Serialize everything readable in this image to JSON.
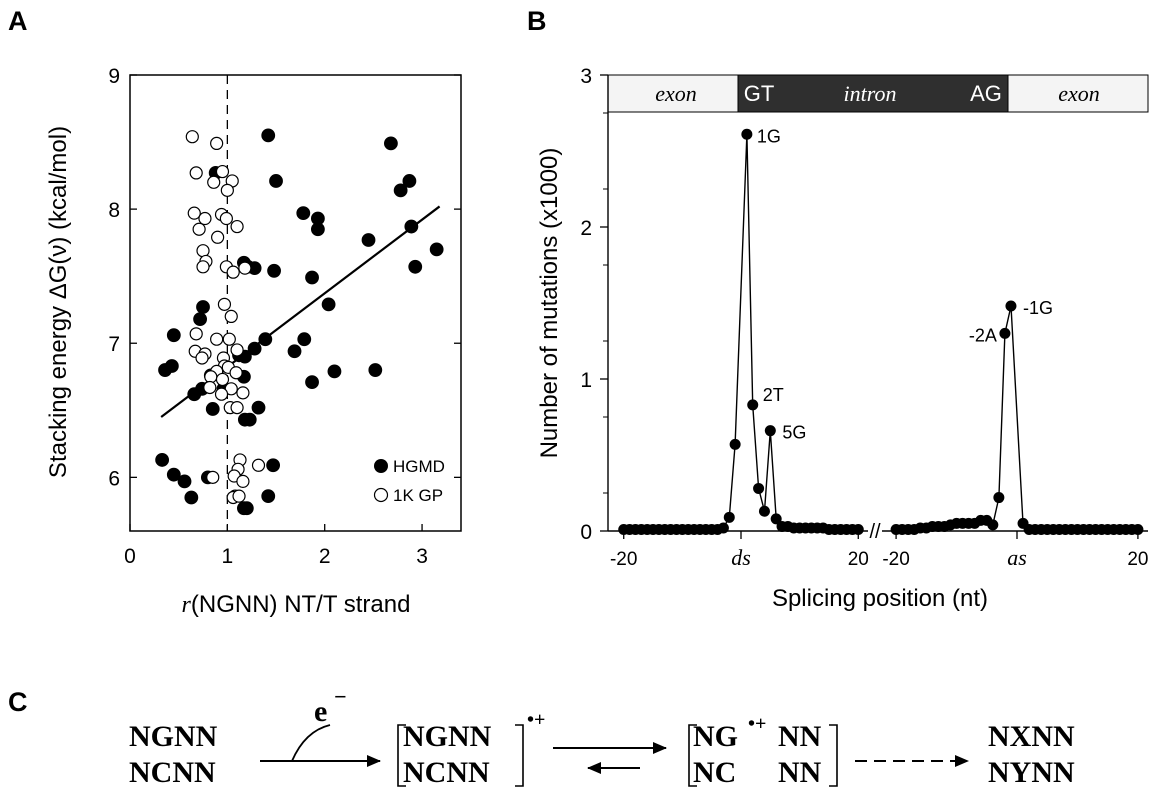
{
  "panels": {
    "a_letter": "A",
    "b_letter": "B",
    "c_letter": "C"
  },
  "chart_data": [
    {
      "type": "scatter",
      "panel": "A",
      "xlabel_italic": "r",
      "xlabel_rest": "(NGNN) NT/T strand",
      "ylabel": "Stacking energy ΔG(ν) (kcal/mol)",
      "xlim": [
        0,
        3.4
      ],
      "ylim": [
        5.6,
        9
      ],
      "xticks": [
        0,
        1,
        2,
        3
      ],
      "yticks": [
        6,
        7,
        8,
        9
      ],
      "xtick_labels": [
        "0",
        "1",
        "2",
        "3"
      ],
      "ytick_labels": [
        "6",
        "7",
        "8",
        "9"
      ],
      "reference_line_x": 1,
      "trend_line": {
        "x": [
          0.32,
          3.18
        ],
        "y": [
          6.45,
          8.02
        ]
      },
      "legend_placement": "bottom-right",
      "series": [
        {
          "name": "HGMD",
          "marker": "filled-circle",
          "points": [
            [
              0.88,
              8.27
            ],
            [
              1.42,
              8.55
            ],
            [
              2.68,
              8.49
            ],
            [
              1.5,
              8.21
            ],
            [
              2.87,
              8.21
            ],
            [
              2.78,
              8.14
            ],
            [
              1.78,
              7.97
            ],
            [
              1.93,
              7.93
            ],
            [
              1.93,
              7.85
            ],
            [
              2.89,
              7.87
            ],
            [
              2.45,
              7.77
            ],
            [
              3.15,
              7.7
            ],
            [
              1.17,
              7.6
            ],
            [
              1.21,
              7.57
            ],
            [
              1.28,
              7.56
            ],
            [
              1.48,
              7.54
            ],
            [
              2.93,
              7.57
            ],
            [
              1.87,
              7.49
            ],
            [
              2.04,
              7.29
            ],
            [
              0.75,
              7.27
            ],
            [
              0.72,
              7.18
            ],
            [
              0.45,
              7.06
            ],
            [
              1.39,
              7.03
            ],
            [
              1.79,
              7.03
            ],
            [
              1.69,
              6.94
            ],
            [
              1.28,
              6.96
            ],
            [
              1.12,
              6.91
            ],
            [
              1.18,
              6.9
            ],
            [
              0.36,
              6.8
            ],
            [
              0.43,
              6.83
            ],
            [
              2.1,
              6.79
            ],
            [
              2.52,
              6.8
            ],
            [
              0.83,
              6.76
            ],
            [
              1.17,
              6.75
            ],
            [
              0.74,
              6.66
            ],
            [
              0.96,
              6.66
            ],
            [
              0.66,
              6.62
            ],
            [
              1.87,
              6.71
            ],
            [
              0.85,
              6.51
            ],
            [
              1.32,
              6.52
            ],
            [
              1.23,
              6.43
            ],
            [
              1.18,
              6.43
            ],
            [
              0.33,
              6.13
            ],
            [
              1.47,
              6.09
            ],
            [
              0.45,
              6.02
            ],
            [
              0.56,
              5.97
            ],
            [
              0.8,
              6.0
            ],
            [
              0.63,
              5.85
            ],
            [
              1.42,
              5.86
            ],
            [
              1.2,
              5.77
            ],
            [
              1.17,
              5.77
            ]
          ]
        },
        {
          "name": "1K GP",
          "marker": "open-circle",
          "points": [
            [
              0.64,
              8.54
            ],
            [
              0.89,
              8.49
            ],
            [
              0.68,
              8.27
            ],
            [
              0.95,
              8.28
            ],
            [
              1.05,
              8.21
            ],
            [
              0.86,
              8.2
            ],
            [
              1.0,
              8.14
            ],
            [
              0.66,
              7.97
            ],
            [
              0.77,
              7.93
            ],
            [
              0.94,
              7.96
            ],
            [
              0.99,
              7.93
            ],
            [
              0.71,
              7.85
            ],
            [
              1.1,
              7.87
            ],
            [
              0.9,
              7.79
            ],
            [
              0.75,
              7.69
            ],
            [
              0.78,
              7.61
            ],
            [
              0.75,
              7.57
            ],
            [
              0.99,
              7.57
            ],
            [
              1.06,
              7.53
            ],
            [
              1.18,
              7.56
            ],
            [
              0.97,
              7.29
            ],
            [
              1.04,
              7.2
            ],
            [
              0.68,
              7.07
            ],
            [
              0.89,
              7.03
            ],
            [
              1.02,
              7.03
            ],
            [
              0.67,
              6.94
            ],
            [
              0.77,
              6.92
            ],
            [
              1.1,
              6.95
            ],
            [
              0.74,
              6.89
            ],
            [
              0.96,
              6.89
            ],
            [
              0.97,
              6.83
            ],
            [
              1.01,
              6.82
            ],
            [
              0.89,
              6.79
            ],
            [
              0.83,
              6.75
            ],
            [
              0.95,
              6.73
            ],
            [
              1.09,
              6.78
            ],
            [
              0.82,
              6.67
            ],
            [
              1.04,
              6.66
            ],
            [
              0.94,
              6.62
            ],
            [
              1.16,
              6.63
            ],
            [
              1.03,
              6.52
            ],
            [
              1.1,
              6.52
            ],
            [
              1.13,
              6.13
            ],
            [
              1.32,
              6.09
            ],
            [
              1.11,
              6.06
            ],
            [
              1.07,
              6.01
            ],
            [
              0.85,
              6.0
            ],
            [
              1.16,
              5.97
            ],
            [
              1.08,
              5.86
            ],
            [
              1.06,
              5.85
            ],
            [
              1.12,
              5.86
            ]
          ]
        }
      ]
    },
    {
      "type": "line",
      "panel": "B",
      "xlabel": "Splicing position (nt)",
      "ylabel": "Number of mutations (x1000)",
      "ylim": [
        0,
        3
      ],
      "yticks": [
        0,
        1,
        2,
        3
      ],
      "ytick_labels": [
        "0",
        "1",
        "2",
        "3"
      ],
      "xlim_ds": [
        -22,
        22
      ],
      "xlim_as": [
        -22,
        22
      ],
      "xtick_labels_ds": [
        "-20",
        "20"
      ],
      "xtick_labels_as": [
        "-20",
        "20"
      ],
      "site_label_ds": "ds",
      "site_label_as": "as",
      "axis_break": "//",
      "bands": [
        {
          "label": "exon",
          "italic": true,
          "dark": false
        },
        {
          "label": "GT",
          "italic": false,
          "dark": true
        },
        {
          "label": "intron",
          "italic": true,
          "dark": true
        },
        {
          "label": "AG",
          "italic": false,
          "dark": true
        },
        {
          "label": "exon",
          "italic": true,
          "dark": false
        }
      ],
      "series": [
        {
          "segment": "donor",
          "x": [
            -20,
            -19,
            -18,
            -17,
            -16,
            -15,
            -14,
            -13,
            -12,
            -11,
            -10,
            -9,
            -8,
            -7,
            -6,
            -5,
            -4,
            -3,
            -2,
            -1,
            1,
            2,
            3,
            4,
            5,
            6,
            7,
            8,
            9,
            10,
            11,
            12,
            13,
            14,
            15,
            16,
            17,
            18,
            19,
            20
          ],
          "y": [
            0.01,
            0.01,
            0.01,
            0.01,
            0.01,
            0.01,
            0.01,
            0.01,
            0.01,
            0.01,
            0.01,
            0.01,
            0.01,
            0.01,
            0.01,
            0.01,
            0.01,
            0.02,
            0.09,
            0.57,
            2.61,
            0.83,
            0.28,
            0.13,
            0.66,
            0.08,
            0.03,
            0.03,
            0.02,
            0.02,
            0.02,
            0.02,
            0.02,
            0.02,
            0.01,
            0.01,
            0.01,
            0.01,
            0.01,
            0.01
          ]
        },
        {
          "segment": "acceptor",
          "x": [
            -20,
            -19,
            -18,
            -17,
            -16,
            -15,
            -14,
            -13,
            -12,
            -11,
            -10,
            -9,
            -8,
            -7,
            -6,
            -5,
            -4,
            -3,
            -2,
            -1,
            1,
            2,
            3,
            4,
            5,
            6,
            7,
            8,
            9,
            10,
            11,
            12,
            13,
            14,
            15,
            16,
            17,
            18,
            19,
            20
          ],
          "y": [
            0.01,
            0.01,
            0.01,
            0.01,
            0.02,
            0.02,
            0.03,
            0.03,
            0.03,
            0.04,
            0.05,
            0.05,
            0.05,
            0.05,
            0.07,
            0.07,
            0.04,
            0.22,
            1.3,
            1.48,
            0.05,
            0.01,
            0.01,
            0.01,
            0.01,
            0.01,
            0.01,
            0.01,
            0.01,
            0.01,
            0.01,
            0.01,
            0.01,
            0.01,
            0.01,
            0.01,
            0.01,
            0.01,
            0.01,
            0.01
          ]
        }
      ],
      "annotations": [
        {
          "text": "1G",
          "segment": "donor",
          "x": 1,
          "y": 2.61
        },
        {
          "text": "2T",
          "segment": "donor",
          "x": 2,
          "y": 0.83
        },
        {
          "text": "5G",
          "segment": "donor",
          "x": 5,
          "y": 0.66
        },
        {
          "text": "-2A",
          "segment": "acceptor",
          "x": -2,
          "y": 1.3
        },
        {
          "text": "-1G",
          "segment": "acceptor",
          "x": -1,
          "y": 1.48
        }
      ]
    }
  ],
  "scheme": {
    "reactant_top": "NGNN",
    "reactant_bottom": "NCNN",
    "electron": "e",
    "electron_charge": "−",
    "cation1_top": "NGNN",
    "cation1_bottom": "NCNN",
    "cation_charge": "•+",
    "cation2_top_a": "NG",
    "cation2_top_b": "NN",
    "cation2_bottom_a": "NC",
    "cation2_bottom_b": "NN",
    "product_top": "NXNN",
    "product_bottom": "NYNN"
  }
}
